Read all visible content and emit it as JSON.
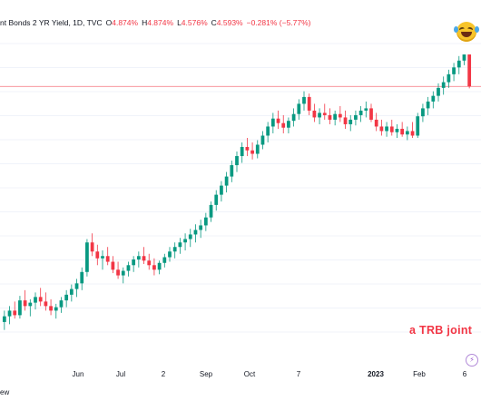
{
  "header": {
    "title": "nt Bonds 2 YR Yield, 1D, TVC",
    "open_label": "O",
    "open": "4.874%",
    "high_label": "H",
    "high": "4.874%",
    "low_label": "L",
    "low": "4.576%",
    "close_label": "C",
    "close": "4.593%",
    "change": "−0.281% (−5.77%)"
  },
  "watermark": "a TRB joint",
  "footer_text": "ew",
  "colors": {
    "up": "#089981",
    "down": "#f23645",
    "price_line": "#f23645"
  },
  "chart_data": {
    "type": "candlestick",
    "x_tick_labels": [
      {
        "label": "Jun",
        "bold": false
      },
      {
        "label": "Jul",
        "bold": false
      },
      {
        "label": "2",
        "bold": false
      },
      {
        "label": "Sep",
        "bold": false
      },
      {
        "label": "Oct",
        "bold": false
      },
      {
        "label": "7",
        "bold": false
      },
      {
        "label": "2023",
        "bold": true
      },
      {
        "label": "Feb",
        "bold": false
      },
      {
        "label": "6",
        "bold": false
      }
    ],
    "last_close": 4.593,
    "series": [
      {
        "o": 2.52,
        "h": 2.62,
        "l": 2.45,
        "c": 2.57
      },
      {
        "o": 2.57,
        "h": 2.66,
        "l": 2.5,
        "c": 2.62
      },
      {
        "o": 2.62,
        "h": 2.7,
        "l": 2.55,
        "c": 2.58
      },
      {
        "o": 2.58,
        "h": 2.75,
        "l": 2.55,
        "c": 2.71
      },
      {
        "o": 2.71,
        "h": 2.8,
        "l": 2.62,
        "c": 2.66
      },
      {
        "o": 2.66,
        "h": 2.72,
        "l": 2.57,
        "c": 2.69
      },
      {
        "o": 2.69,
        "h": 2.78,
        "l": 2.63,
        "c": 2.74
      },
      {
        "o": 2.74,
        "h": 2.82,
        "l": 2.66,
        "c": 2.7
      },
      {
        "o": 2.7,
        "h": 2.78,
        "l": 2.62,
        "c": 2.66
      },
      {
        "o": 2.66,
        "h": 2.72,
        "l": 2.58,
        "c": 2.62
      },
      {
        "o": 2.62,
        "h": 2.68,
        "l": 2.55,
        "c": 2.65
      },
      {
        "o": 2.65,
        "h": 2.74,
        "l": 2.6,
        "c": 2.71
      },
      {
        "o": 2.71,
        "h": 2.8,
        "l": 2.65,
        "c": 2.76
      },
      {
        "o": 2.76,
        "h": 2.85,
        "l": 2.7,
        "c": 2.81
      },
      {
        "o": 2.81,
        "h": 2.9,
        "l": 2.74,
        "c": 2.86
      },
      {
        "o": 2.86,
        "h": 3.0,
        "l": 2.8,
        "c": 2.96
      },
      {
        "o": 2.96,
        "h": 3.25,
        "l": 2.92,
        "c": 3.22
      },
      {
        "o": 3.22,
        "h": 3.3,
        "l": 3.1,
        "c": 3.14
      },
      {
        "o": 3.14,
        "h": 3.2,
        "l": 3.02,
        "c": 3.08
      },
      {
        "o": 3.08,
        "h": 3.15,
        "l": 2.98,
        "c": 3.1
      },
      {
        "o": 3.1,
        "h": 3.18,
        "l": 3.02,
        "c": 3.05
      },
      {
        "o": 3.05,
        "h": 3.1,
        "l": 2.95,
        "c": 2.98
      },
      {
        "o": 2.98,
        "h": 3.05,
        "l": 2.9,
        "c": 2.93
      },
      {
        "o": 2.93,
        "h": 3.0,
        "l": 2.86,
        "c": 2.97
      },
      {
        "o": 2.97,
        "h": 3.05,
        "l": 2.92,
        "c": 3.02
      },
      {
        "o": 3.02,
        "h": 3.1,
        "l": 2.96,
        "c": 3.07
      },
      {
        "o": 3.07,
        "h": 3.14,
        "l": 3.0,
        "c": 3.1
      },
      {
        "o": 3.1,
        "h": 3.18,
        "l": 3.03,
        "c": 3.06
      },
      {
        "o": 3.06,
        "h": 3.12,
        "l": 2.98,
        "c": 3.02
      },
      {
        "o": 3.02,
        "h": 3.08,
        "l": 2.93,
        "c": 2.98
      },
      {
        "o": 2.98,
        "h": 3.06,
        "l": 2.94,
        "c": 3.04
      },
      {
        "o": 3.04,
        "h": 3.12,
        "l": 3.0,
        "c": 3.09
      },
      {
        "o": 3.09,
        "h": 3.18,
        "l": 3.05,
        "c": 3.14
      },
      {
        "o": 3.14,
        "h": 3.22,
        "l": 3.08,
        "c": 3.18
      },
      {
        "o": 3.18,
        "h": 3.26,
        "l": 3.12,
        "c": 3.22
      },
      {
        "o": 3.22,
        "h": 3.3,
        "l": 3.15,
        "c": 3.25
      },
      {
        "o": 3.25,
        "h": 3.34,
        "l": 3.18,
        "c": 3.29
      },
      {
        "o": 3.29,
        "h": 3.38,
        "l": 3.22,
        "c": 3.33
      },
      {
        "o": 3.33,
        "h": 3.42,
        "l": 3.26,
        "c": 3.37
      },
      {
        "o": 3.37,
        "h": 3.48,
        "l": 3.32,
        "c": 3.44
      },
      {
        "o": 3.44,
        "h": 3.58,
        "l": 3.4,
        "c": 3.55
      },
      {
        "o": 3.55,
        "h": 3.68,
        "l": 3.5,
        "c": 3.64
      },
      {
        "o": 3.64,
        "h": 3.76,
        "l": 3.58,
        "c": 3.72
      },
      {
        "o": 3.72,
        "h": 3.84,
        "l": 3.66,
        "c": 3.8
      },
      {
        "o": 3.8,
        "h": 3.94,
        "l": 3.75,
        "c": 3.9
      },
      {
        "o": 3.9,
        "h": 4.02,
        "l": 3.84,
        "c": 3.98
      },
      {
        "o": 3.98,
        "h": 4.1,
        "l": 3.92,
        "c": 4.06
      },
      {
        "o": 4.06,
        "h": 4.14,
        "l": 3.98,
        "c": 4.03
      },
      {
        "o": 4.03,
        "h": 4.1,
        "l": 3.95,
        "c": 4.0
      },
      {
        "o": 4.0,
        "h": 4.12,
        "l": 3.96,
        "c": 4.08
      },
      {
        "o": 4.08,
        "h": 4.2,
        "l": 4.04,
        "c": 4.16
      },
      {
        "o": 4.16,
        "h": 4.28,
        "l": 4.1,
        "c": 4.24
      },
      {
        "o": 4.24,
        "h": 4.36,
        "l": 4.18,
        "c": 4.31
      },
      {
        "o": 4.31,
        "h": 4.38,
        "l": 4.22,
        "c": 4.27
      },
      {
        "o": 4.27,
        "h": 4.34,
        "l": 4.18,
        "c": 4.23
      },
      {
        "o": 4.23,
        "h": 4.32,
        "l": 4.18,
        "c": 4.29
      },
      {
        "o": 4.29,
        "h": 4.4,
        "l": 4.24,
        "c": 4.35
      },
      {
        "o": 4.35,
        "h": 4.48,
        "l": 4.3,
        "c": 4.44
      },
      {
        "o": 4.44,
        "h": 4.55,
        "l": 4.38,
        "c": 4.5
      },
      {
        "o": 4.5,
        "h": 4.53,
        "l": 4.34,
        "c": 4.38
      },
      {
        "o": 4.38,
        "h": 4.44,
        "l": 4.28,
        "c": 4.32
      },
      {
        "o": 4.32,
        "h": 4.4,
        "l": 4.26,
        "c": 4.36
      },
      {
        "o": 4.36,
        "h": 4.44,
        "l": 4.3,
        "c": 4.34
      },
      {
        "o": 4.34,
        "h": 4.4,
        "l": 4.26,
        "c": 4.3
      },
      {
        "o": 4.3,
        "h": 4.38,
        "l": 4.25,
        "c": 4.35
      },
      {
        "o": 4.35,
        "h": 4.42,
        "l": 4.28,
        "c": 4.32
      },
      {
        "o": 4.32,
        "h": 4.38,
        "l": 4.22,
        "c": 4.26
      },
      {
        "o": 4.26,
        "h": 4.34,
        "l": 4.2,
        "c": 4.3
      },
      {
        "o": 4.3,
        "h": 4.38,
        "l": 4.25,
        "c": 4.34
      },
      {
        "o": 4.34,
        "h": 4.42,
        "l": 4.28,
        "c": 4.38
      },
      {
        "o": 4.38,
        "h": 4.46,
        "l": 4.32,
        "c": 4.4
      },
      {
        "o": 4.4,
        "h": 4.44,
        "l": 4.28,
        "c": 4.3
      },
      {
        "o": 4.3,
        "h": 4.36,
        "l": 4.2,
        "c": 4.24
      },
      {
        "o": 4.24,
        "h": 4.3,
        "l": 4.16,
        "c": 4.2
      },
      {
        "o": 4.2,
        "h": 4.28,
        "l": 4.15,
        "c": 4.24
      },
      {
        "o": 4.24,
        "h": 4.3,
        "l": 4.16,
        "c": 4.19
      },
      {
        "o": 4.19,
        "h": 4.26,
        "l": 4.14,
        "c": 4.22
      },
      {
        "o": 4.22,
        "h": 4.28,
        "l": 4.15,
        "c": 4.17
      },
      {
        "o": 4.17,
        "h": 4.24,
        "l": 4.12,
        "c": 4.2
      },
      {
        "o": 4.2,
        "h": 4.28,
        "l": 4.14,
        "c": 4.16
      },
      {
        "o": 4.16,
        "h": 4.36,
        "l": 4.14,
        "c": 4.33
      },
      {
        "o": 4.33,
        "h": 4.44,
        "l": 4.28,
        "c": 4.4
      },
      {
        "o": 4.4,
        "h": 4.5,
        "l": 4.34,
        "c": 4.46
      },
      {
        "o": 4.46,
        "h": 4.55,
        "l": 4.4,
        "c": 4.51
      },
      {
        "o": 4.51,
        "h": 4.62,
        "l": 4.46,
        "c": 4.58
      },
      {
        "o": 4.58,
        "h": 4.68,
        "l": 4.52,
        "c": 4.63
      },
      {
        "o": 4.63,
        "h": 4.74,
        "l": 4.58,
        "c": 4.7
      },
      {
        "o": 4.7,
        "h": 4.8,
        "l": 4.64,
        "c": 4.76
      },
      {
        "o": 4.76,
        "h": 4.86,
        "l": 4.7,
        "c": 4.82
      },
      {
        "o": 4.82,
        "h": 4.874,
        "l": 4.78,
        "c": 4.874
      },
      {
        "o": 4.874,
        "h": 4.874,
        "l": 4.576,
        "c": 4.593
      }
    ]
  }
}
